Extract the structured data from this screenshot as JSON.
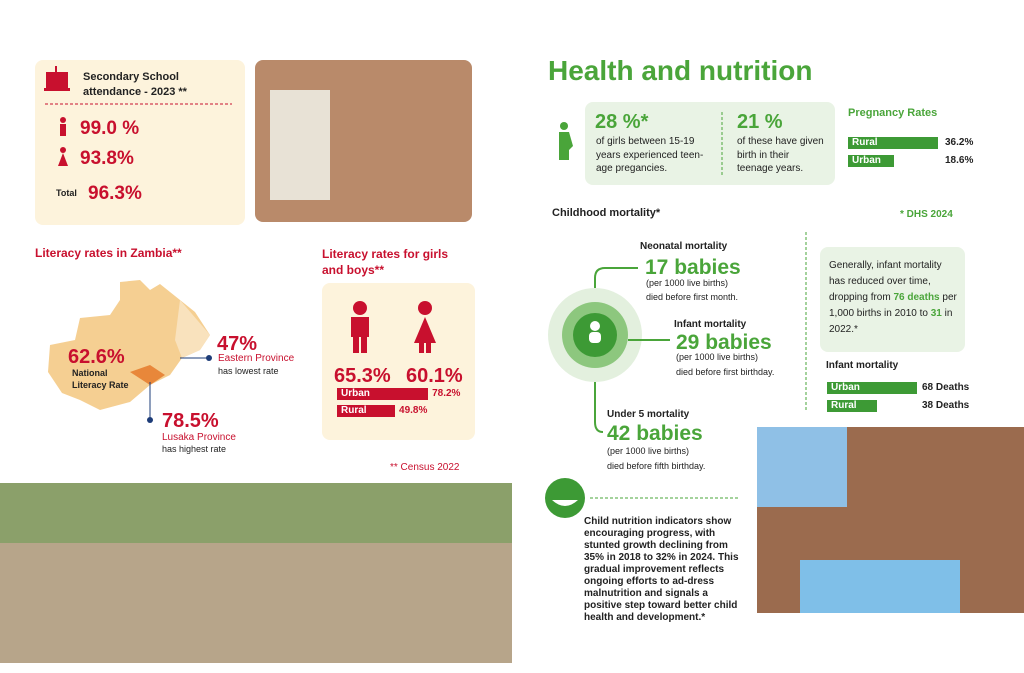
{
  "school": {
    "title": "Secondary School attendance - 2023 **",
    "boys": "99.0 %",
    "girls": "93.8%",
    "total_label": "Total",
    "total": "96.3%"
  },
  "literacy_zambia": {
    "title": "Literacy rates in Zambia**",
    "national": "62.6%",
    "national_label": "National Literacy Rate",
    "eastern": "47%",
    "eastern_label": "Eastern Province",
    "eastern_note": "has lowest rate",
    "lusaka": "78.5%",
    "lusaka_label": "Lusaka Province",
    "lusaka_note": "has highest rate"
  },
  "literacy_gender": {
    "title": "Literacy rates for girls and boys**",
    "boys": "65.3%",
    "girls": "60.1%",
    "bars": [
      {
        "label": "Urban",
        "value": 78.2,
        "value_label": "78.2%"
      },
      {
        "label": "Rural",
        "value": 49.8,
        "value_label": "49.8%"
      }
    ]
  },
  "census_note": "** Census 2022",
  "health": {
    "title": "Health and nutrition",
    "teen_pregnancy": {
      "value": "28 %*",
      "text": "of girls between 15-19 years experienced teen-age pregancies."
    },
    "teen_birth": {
      "value": "21 %",
      "text": "of these have given birth in their teenage years."
    },
    "pregnancy_rates": {
      "title": "Pregnancy Rates",
      "bars": [
        {
          "label": "Rural",
          "value": 36.2,
          "value_label": "36.2%"
        },
        {
          "label": "Urban",
          "value": 18.6,
          "value_label": "18.6%"
        }
      ]
    },
    "mortality_title": "Childhood mortality*",
    "source": "* DHS 2024",
    "neonatal": {
      "title": "Neonatal mortality",
      "value": "17 babies",
      "unit": "(per 1000 live births)",
      "text": "died before first month."
    },
    "infant": {
      "title": "Infant mortality",
      "value": "29 babies",
      "unit": "(per 1000 live births)",
      "text": "died before first birthday."
    },
    "under5": {
      "title": "Under 5 mortality",
      "value": "42 babies",
      "unit": "(per 1000 live births)",
      "text": "died before fifth birthday."
    },
    "infant_note": {
      "text1": "Generally, infant mortality has reduced over time, dropping from ",
      "bold1": "76 deaths",
      "text2": " per 1,000 births in 2010 to ",
      "bold2": "31",
      "text3": " in 2022.*"
    },
    "infant_deaths": {
      "title": "Infant mortality",
      "bars": [
        {
          "label": "Urban",
          "value": 68,
          "value_label": "68 Deaths"
        },
        {
          "label": "Rural",
          "value": 38,
          "value_label": "38 Deaths"
        }
      ]
    },
    "nutrition": "Child nutrition indicators show encouraging progress, with stunted growth declining from 35% in 2018 to 32% in 2024. This gradual improvement reflects ongoing efforts to ad-dress malnutrition and signals a positive step toward better child health and development.*"
  }
}
